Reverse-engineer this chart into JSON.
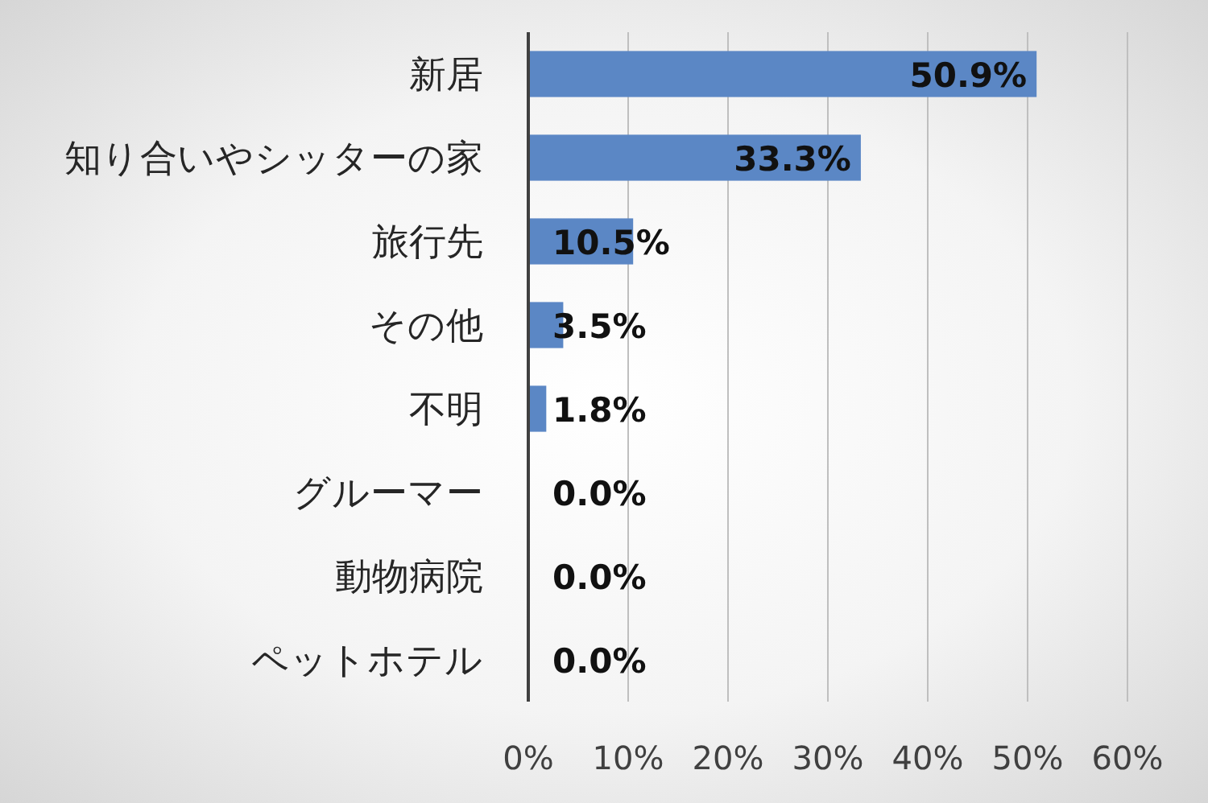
{
  "chart_data": {
    "type": "bar",
    "orientation": "horizontal",
    "categories": [
      "新居",
      "知り合いやシッターの家",
      "旅行先",
      "その他",
      "不明",
      "グルーマー",
      "動物病院",
      "ペットホテル"
    ],
    "values": [
      50.9,
      33.3,
      10.5,
      3.5,
      1.8,
      0.0,
      0.0,
      0.0
    ],
    "value_labels": [
      "50.9%",
      "33.3%",
      "10.5%",
      "3.5%",
      "1.8%",
      "0.0%",
      "0.0%",
      "0.0%"
    ],
    "color": "#5b87c5",
    "xlim": [
      0,
      60
    ],
    "xticks": [
      {
        "value": 0,
        "label": "0%"
      },
      {
        "value": 10,
        "label": "10%"
      },
      {
        "value": 20,
        "label": "20%"
      },
      {
        "value": 30,
        "label": "30%"
      },
      {
        "value": 40,
        "label": "40%"
      },
      {
        "value": 50,
        "label": "50%"
      },
      {
        "value": 60,
        "label": "60%"
      }
    ],
    "grid": "x"
  }
}
